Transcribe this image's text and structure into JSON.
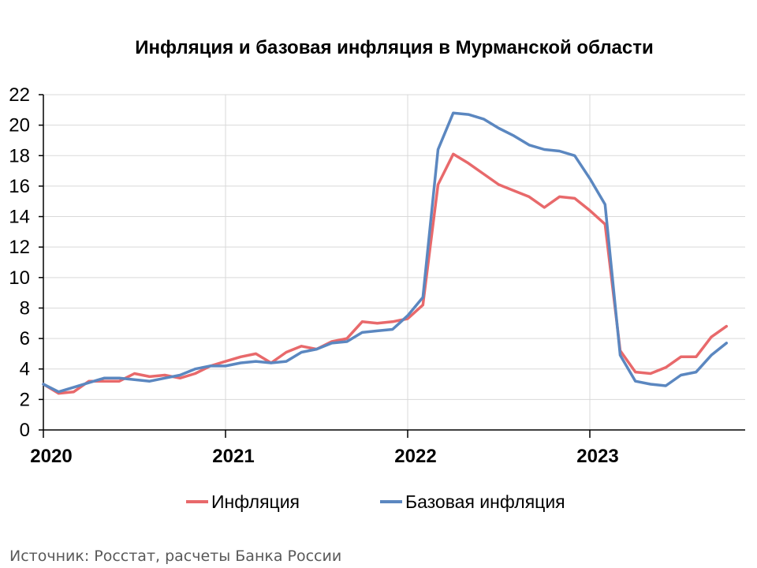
{
  "colors": {
    "inflation": "#e8696b",
    "core_inflation": "#5b87c0",
    "source_text": "#595959"
  },
  "source": "Источник: Росстат, расчеты Банка России",
  "chart_data": {
    "type": "line",
    "title": "Инфляция и базовая инфляция в Мурманской области",
    "xlabel": "",
    "ylabel": "",
    "ylim": [
      0,
      22
    ],
    "yticks": [
      0,
      2,
      4,
      6,
      8,
      10,
      12,
      14,
      16,
      18,
      20,
      22
    ],
    "xtick_labels": [
      "2020",
      "2021",
      "2022",
      "2023"
    ],
    "grid": true,
    "legend_position": "bottom",
    "x": [
      "2020-01",
      "2020-02",
      "2020-03",
      "2020-04",
      "2020-05",
      "2020-06",
      "2020-07",
      "2020-08",
      "2020-09",
      "2020-10",
      "2020-11",
      "2020-12",
      "2021-01",
      "2021-02",
      "2021-03",
      "2021-04",
      "2021-05",
      "2021-06",
      "2021-07",
      "2021-08",
      "2021-09",
      "2021-10",
      "2021-11",
      "2021-12",
      "2022-01",
      "2022-02",
      "2022-03",
      "2022-04",
      "2022-05",
      "2022-06",
      "2022-07",
      "2022-08",
      "2022-09",
      "2022-10",
      "2022-11",
      "2022-12",
      "2023-01",
      "2023-02",
      "2023-03",
      "2023-04",
      "2023-05",
      "2023-06",
      "2023-07",
      "2023-08",
      "2023-09",
      "2023-10"
    ],
    "series": [
      {
        "name": "Инфляция",
        "values": [
          3.0,
          2.4,
          2.5,
          3.2,
          3.2,
          3.2,
          3.7,
          3.5,
          3.6,
          3.4,
          3.7,
          4.2,
          4.5,
          4.8,
          5.0,
          4.4,
          5.1,
          5.5,
          5.3,
          5.8,
          6.0,
          7.1,
          7.0,
          7.1,
          7.3,
          8.2,
          16.1,
          18.1,
          17.5,
          16.8,
          16.1,
          15.7,
          15.3,
          14.6,
          15.3,
          15.2,
          14.4,
          13.5,
          5.2,
          3.8,
          3.7,
          4.1,
          4.8,
          4.8,
          6.1,
          6.8
        ]
      },
      {
        "name": "Базовая инфляция",
        "values": [
          3.0,
          2.5,
          2.8,
          3.1,
          3.4,
          3.4,
          3.3,
          3.2,
          3.4,
          3.6,
          4.0,
          4.2,
          4.2,
          4.4,
          4.5,
          4.4,
          4.5,
          5.1,
          5.3,
          5.7,
          5.8,
          6.4,
          6.5,
          6.6,
          7.5,
          8.7,
          18.4,
          20.8,
          20.7,
          20.4,
          19.8,
          19.3,
          18.7,
          18.4,
          18.3,
          18.0,
          16.5,
          14.8,
          4.9,
          3.2,
          3.0,
          2.9,
          3.6,
          3.8,
          4.9,
          5.7
        ]
      }
    ]
  }
}
